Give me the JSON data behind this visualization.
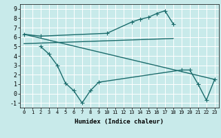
{
  "xlabel": "Humidex (Indice chaleur)",
  "background_color": "#c8eaea",
  "grid_color": "#ffffff",
  "line_color": "#1a6b6b",
  "xlim": [
    -0.5,
    23.5
  ],
  "ylim": [
    -1.5,
    9.5
  ],
  "xticks": [
    0,
    1,
    2,
    3,
    4,
    5,
    6,
    7,
    8,
    9,
    10,
    11,
    12,
    13,
    14,
    15,
    16,
    17,
    18,
    19,
    20,
    21,
    22,
    23
  ],
  "yticks": [
    -1,
    0,
    1,
    2,
    3,
    4,
    5,
    6,
    7,
    8,
    9
  ],
  "line1_x": [
    0,
    2,
    10,
    13,
    14,
    15,
    16,
    17,
    18
  ],
  "line1_y": [
    6.3,
    6.1,
    6.4,
    7.6,
    7.9,
    8.1,
    8.5,
    8.8,
    7.4
  ],
  "line2_x": [
    0,
    18
  ],
  "line2_y": [
    5.3,
    5.85
  ],
  "line3_x": [
    2,
    3,
    4,
    5,
    6,
    7,
    8,
    9,
    19,
    20,
    21,
    22,
    23
  ],
  "line3_y": [
    5.0,
    4.2,
    3.0,
    1.1,
    0.3,
    -1.0,
    0.3,
    1.2,
    2.5,
    2.5,
    1.0,
    -0.7,
    1.5
  ],
  "line4_x": [
    0,
    23
  ],
  "line4_y": [
    6.3,
    1.5
  ],
  "marker": "+",
  "markersize": 4,
  "linewidth": 1.0
}
